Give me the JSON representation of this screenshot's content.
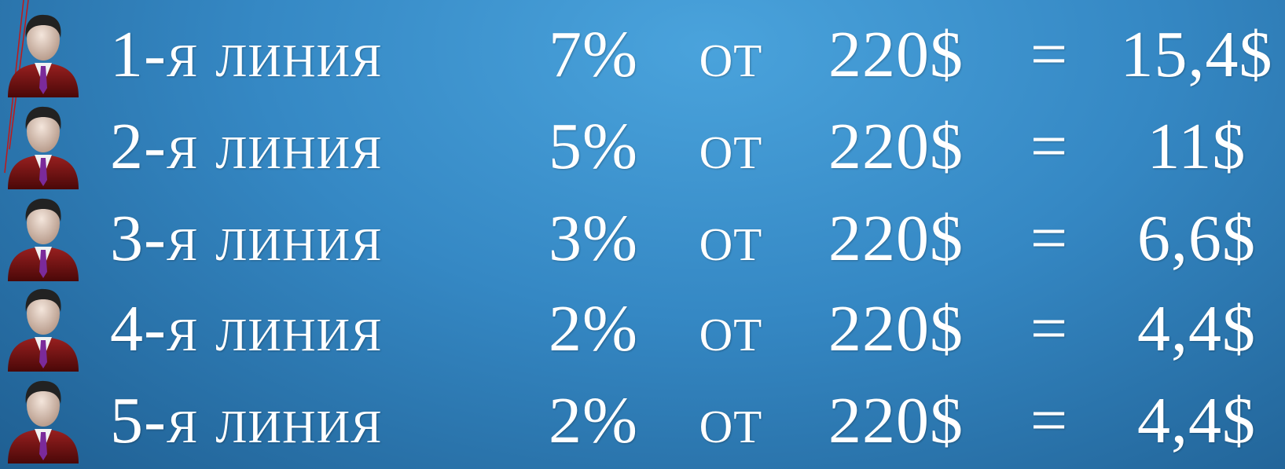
{
  "rows": [
    {
      "label": "1-я линия",
      "percent": "7%",
      "from": "от",
      "amount": "220$",
      "equals": "=",
      "result": "15,4$"
    },
    {
      "label": "2-я линия",
      "percent": "5%",
      "from": "от",
      "amount": "220$",
      "equals": "=",
      "result": "11$"
    },
    {
      "label": "3-я линия",
      "percent": "3%",
      "from": "от",
      "amount": "220$",
      "equals": "=",
      "result": "6,6$"
    },
    {
      "label": "4-я линия",
      "percent": "2%",
      "from": "от",
      "amount": "220$",
      "equals": "=",
      "result": "4,4$"
    },
    {
      "label": "5-я линия",
      "percent": "2%",
      "from": "от",
      "amount": "220$",
      "equals": "=",
      "result": "4,4$"
    }
  ]
}
